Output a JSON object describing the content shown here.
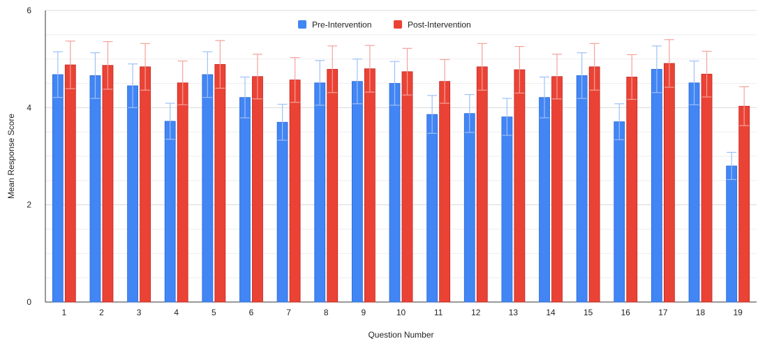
{
  "chart_data": {
    "type": "bar",
    "title": "",
    "xlabel": "Question Number",
    "ylabel": "Mean Response Score",
    "ylim": [
      0,
      6
    ],
    "yticks": [
      0,
      2,
      4,
      6
    ],
    "grid": true,
    "legend_position": "top-center",
    "categories": [
      "1",
      "2",
      "3",
      "4",
      "5",
      "6",
      "7",
      "8",
      "9",
      "10",
      "11",
      "12",
      "13",
      "14",
      "15",
      "16",
      "17",
      "18",
      "19"
    ],
    "series": [
      {
        "name": "Pre-Intervention",
        "color": "#4285f4",
        "values": [
          4.68,
          4.66,
          4.45,
          3.72,
          4.68,
          4.21,
          3.7,
          4.51,
          4.54,
          4.5,
          3.86,
          3.88,
          3.81,
          4.21,
          4.66,
          3.71,
          4.79,
          4.51,
          2.8
        ],
        "error": [
          0.47,
          0.47,
          0.45,
          0.37,
          0.47,
          0.42,
          0.37,
          0.46,
          0.46,
          0.45,
          0.39,
          0.39,
          0.38,
          0.42,
          0.47,
          0.37,
          0.48,
          0.45,
          0.28
        ]
      },
      {
        "name": "Post-Intervention",
        "color": "#ea4335",
        "values": [
          4.88,
          4.87,
          4.84,
          4.51,
          4.89,
          4.64,
          4.57,
          4.79,
          4.8,
          4.74,
          4.54,
          4.84,
          4.78,
          4.64,
          4.84,
          4.63,
          4.91,
          4.69,
          4.03
        ],
        "error": [
          0.49,
          0.49,
          0.48,
          0.45,
          0.49,
          0.46,
          0.46,
          0.48,
          0.48,
          0.48,
          0.45,
          0.48,
          0.48,
          0.46,
          0.48,
          0.46,
          0.49,
          0.47,
          0.4
        ]
      }
    ]
  }
}
